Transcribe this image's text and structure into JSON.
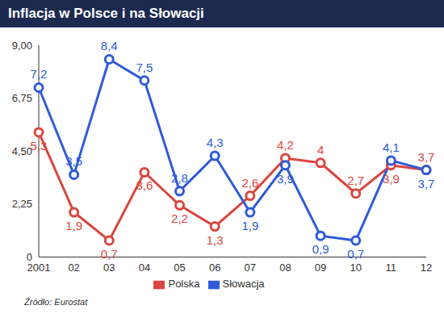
{
  "chart_data": {
    "type": "line",
    "title": "Inflacja w Polsce i na Słowacji",
    "source": "Źródło: Eurostat",
    "categories": [
      "2001",
      "02",
      "03",
      "04",
      "05",
      "06",
      "07",
      "08",
      "09",
      "10",
      "11",
      "12"
    ],
    "series": [
      {
        "name": "Polska",
        "color": "#d9463f",
        "marker": "circle",
        "values": [
          5.3,
          1.9,
          0.7,
          3.6,
          2.2,
          1.3,
          2.6,
          4.2,
          4,
          2.7,
          3.9,
          3.7
        ],
        "value_labels": [
          "5,3",
          "1,9",
          "0,7",
          "3,6",
          "2,2",
          "1,3",
          "2,6",
          "4,2",
          "4",
          "2,7",
          "3,9",
          "3,7"
        ]
      },
      {
        "name": "Słowacja",
        "color": "#2f5bd8",
        "marker": "circle",
        "values": [
          7.2,
          3.5,
          8.4,
          7.5,
          2.8,
          4.3,
          1.9,
          3.9,
          0.9,
          0.7,
          4.1,
          3.7
        ],
        "value_labels": [
          "7,2",
          "3,5",
          "8,4",
          "7,5",
          "2,8",
          "4,3",
          "1,9",
          "3,9",
          "0,9",
          "0,7",
          "4,1",
          "3,7"
        ]
      }
    ],
    "ylim": [
      0,
      9
    ],
    "yticks": [
      {
        "value": 0,
        "label": "0"
      },
      {
        "value": 2.25,
        "label": "2,25"
      },
      {
        "value": 4.5,
        "label": "4,50"
      },
      {
        "value": 6.75,
        "label": "6,75"
      },
      {
        "value": 9,
        "label": "9,00"
      }
    ],
    "grid": false,
    "legend": "bottom",
    "data_labels": true
  }
}
